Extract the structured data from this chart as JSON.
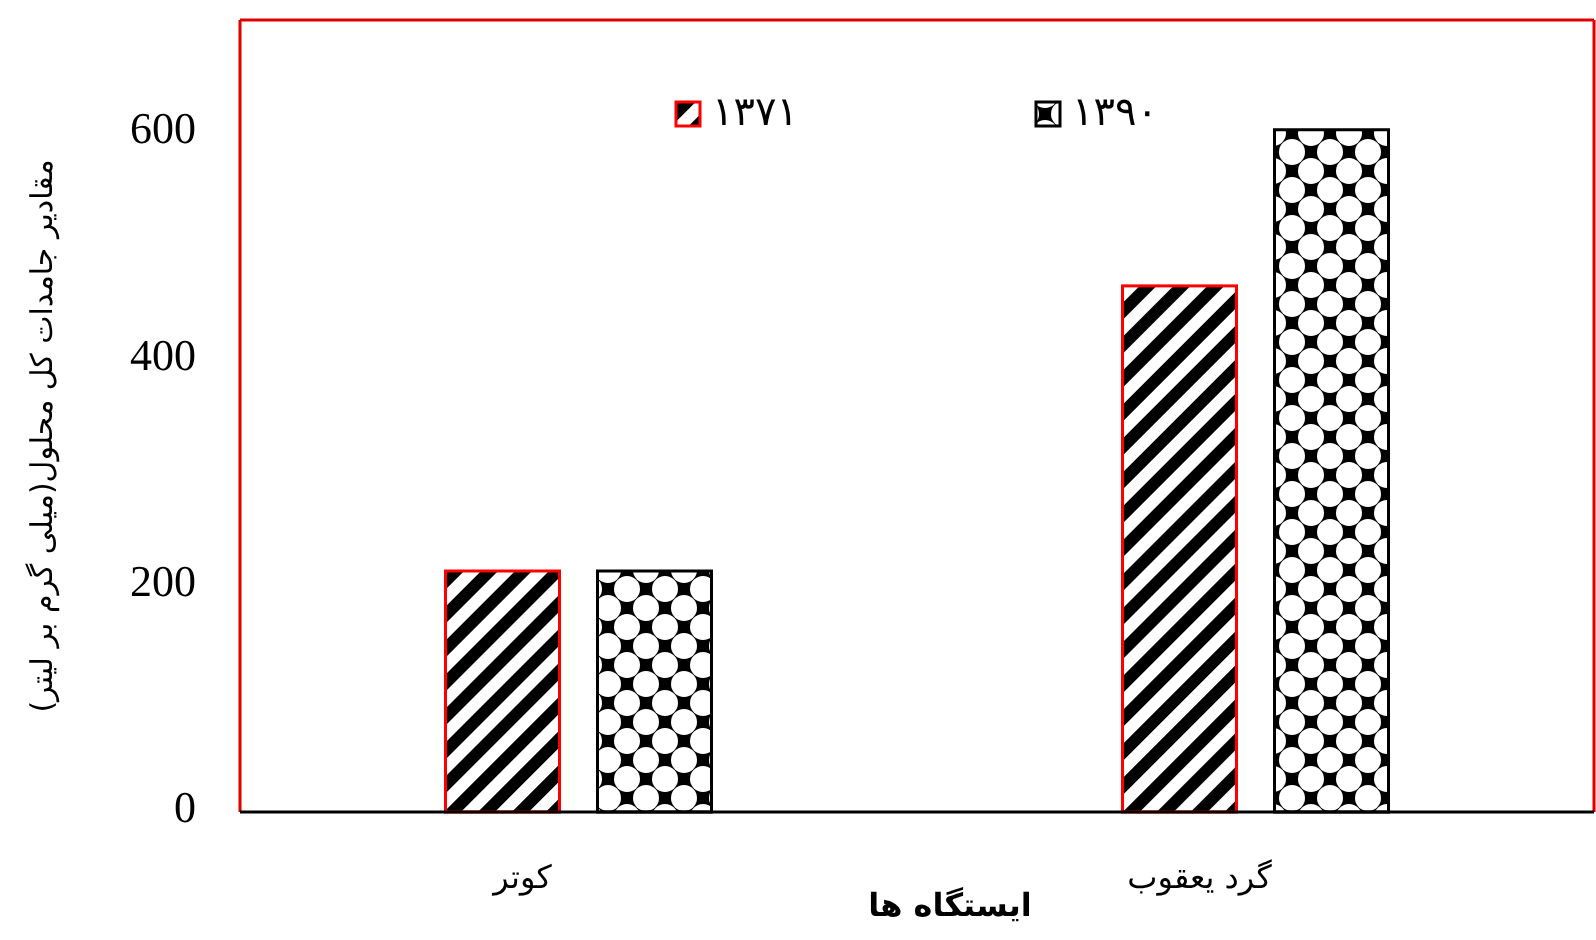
{
  "chart_data": {
    "type": "bar",
    "xlabel": "ایستگاه ها",
    "ylabel": "مقادیر جامدات کل محلول(میلی گرم بر لیتر)",
    "categories": [
      "کوتر",
      "گرد یعقوب"
    ],
    "series": [
      {
        "name": "۱۳۷۱",
        "color": "#ff0000",
        "values": [
          213,
          465
        ]
      },
      {
        "name": "۱۳۹۰",
        "color": "#000000",
        "values": [
          213,
          603
        ]
      }
    ],
    "ylim": [
      0,
      700
    ],
    "yticks": [
      0,
      200,
      400,
      600
    ],
    "grid": false,
    "legend": "top"
  }
}
